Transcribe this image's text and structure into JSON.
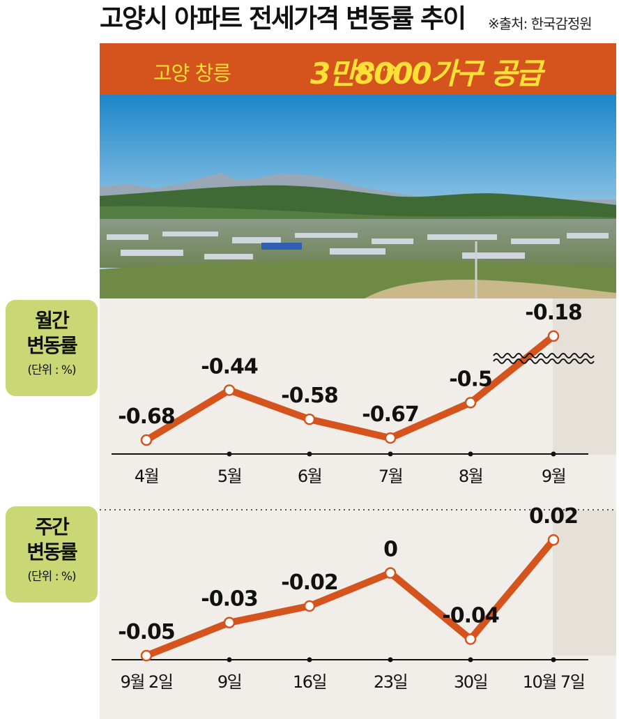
{
  "header": {
    "title": "고양시 아파트 전세가격 변동률 추이",
    "source": "※출처: 한국감정원"
  },
  "banner": {
    "left_text": "고양 창릉",
    "right_text": "3만8000가구 공급",
    "bg_color": "#d5531c",
    "text_color": "#ffe034"
  },
  "monthly_label": {
    "line1": "월간",
    "line2": "변동률",
    "unit": "(단위 : %)"
  },
  "weekly_label": {
    "line1": "주간",
    "line2": "변동률",
    "unit": "(단위 : %)"
  },
  "chart_data": [
    {
      "type": "line",
      "categories": [
        "4월",
        "5월",
        "6월",
        "7월",
        "8월",
        "9월"
      ],
      "values": [
        -0.68,
        -0.44,
        -0.58,
        -0.67,
        -0.5,
        -0.18
      ],
      "value_labels": [
        "-0.68",
        "-0.44",
        "-0.58",
        "-0.67",
        "-0.5",
        "-0.18"
      ],
      "ylim": [
        -0.71,
        -0.14
      ],
      "axis_break": true,
      "line_color": "#d5531c"
    },
    {
      "type": "line",
      "categories": [
        "9월 2일",
        "9일",
        "16일",
        "23일",
        "30일",
        "10월 7일"
      ],
      "values": [
        -0.05,
        -0.03,
        -0.02,
        0,
        -0.04,
        0.02
      ],
      "value_labels": [
        "-0.05",
        "-0.03",
        "-0.02",
        "0",
        "-0.04",
        "0.02"
      ],
      "ylim": [
        -0.055,
        0.026
      ],
      "line_color": "#d5531c"
    }
  ]
}
